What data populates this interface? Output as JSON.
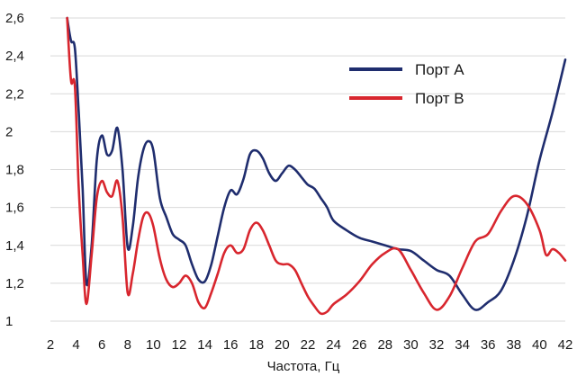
{
  "chart_data": {
    "type": "line",
    "title": "",
    "xlabel": "Частота, Гц",
    "ylabel": "",
    "xlim": [
      2,
      42
    ],
    "ylim": [
      1,
      2.6
    ],
    "xticks": [
      2,
      4,
      6,
      8,
      10,
      12,
      14,
      16,
      18,
      20,
      22,
      24,
      26,
      28,
      30,
      32,
      34,
      36,
      38,
      40,
      42
    ],
    "yticks": [
      1,
      1.2,
      1.4,
      1.6,
      1.8,
      2,
      2.2,
      2.4,
      2.6
    ],
    "ytick_labels": [
      "1",
      "1,2",
      "1,4",
      "1,6",
      "1,8",
      "2",
      "2,2",
      "2,4",
      "2,6"
    ],
    "grid": "horizontal",
    "legend_position": "top-right",
    "series": [
      {
        "name": "Порт А",
        "color": "#1f2d6e",
        "x": [
          3.3,
          3.6,
          3.9,
          4.2,
          4.5,
          4.8,
          5.2,
          5.6,
          6.0,
          6.4,
          6.8,
          7.2,
          7.6,
          8.0,
          8.4,
          8.8,
          9.2,
          9.6,
          10.0,
          10.5,
          11.0,
          11.5,
          12.0,
          12.5,
          13.0,
          13.5,
          14.0,
          14.5,
          15.0,
          15.5,
          16.0,
          16.5,
          17.0,
          17.5,
          18.0,
          18.5,
          19.0,
          19.5,
          20.0,
          20.5,
          21.0,
          21.5,
          22.0,
          22.5,
          23.0,
          23.5,
          24.0,
          25.0,
          26.0,
          27.0,
          28.0,
          29.0,
          30.0,
          31.0,
          32.0,
          33.0,
          34.0,
          35.0,
          36.0,
          37.0,
          38.0,
          39.0,
          40.0,
          41.0,
          42.0
        ],
        "values": [
          2.6,
          2.48,
          2.44,
          2.1,
          1.7,
          1.2,
          1.4,
          1.85,
          1.98,
          1.88,
          1.9,
          2.02,
          1.8,
          1.39,
          1.5,
          1.75,
          1.9,
          1.95,
          1.9,
          1.65,
          1.55,
          1.46,
          1.43,
          1.4,
          1.3,
          1.22,
          1.21,
          1.3,
          1.45,
          1.6,
          1.69,
          1.67,
          1.75,
          1.88,
          1.9,
          1.86,
          1.78,
          1.74,
          1.78,
          1.82,
          1.8,
          1.76,
          1.72,
          1.7,
          1.65,
          1.6,
          1.53,
          1.48,
          1.44,
          1.42,
          1.4,
          1.38,
          1.37,
          1.32,
          1.27,
          1.24,
          1.14,
          1.06,
          1.1,
          1.16,
          1.32,
          1.55,
          1.85,
          2.1,
          2.38
        ]
      },
      {
        "name": "Порт В",
        "color": "#d8262e",
        "x": [
          3.3,
          3.6,
          3.9,
          4.2,
          4.5,
          4.8,
          5.2,
          5.6,
          6.0,
          6.4,
          6.8,
          7.2,
          7.6,
          8.0,
          8.4,
          8.8,
          9.2,
          9.6,
          10.0,
          10.5,
          11.0,
          11.5,
          12.0,
          12.5,
          13.0,
          13.5,
          14.0,
          14.5,
          15.0,
          15.5,
          16.0,
          16.5,
          17.0,
          17.5,
          18.0,
          18.5,
          19.0,
          19.5,
          20.0,
          20.5,
          21.0,
          21.5,
          22.0,
          22.5,
          23.0,
          23.5,
          24.0,
          25.0,
          26.0,
          27.0,
          28.0,
          29.0,
          30.0,
          31.0,
          32.0,
          33.0,
          34.0,
          35.0,
          36.0,
          37.0,
          38.0,
          39.0,
          40.0,
          40.5,
          41.0,
          41.5,
          42.0
        ],
        "values": [
          2.6,
          2.27,
          2.24,
          1.7,
          1.35,
          1.09,
          1.35,
          1.65,
          1.74,
          1.68,
          1.66,
          1.74,
          1.55,
          1.15,
          1.25,
          1.42,
          1.55,
          1.57,
          1.5,
          1.33,
          1.22,
          1.18,
          1.2,
          1.24,
          1.2,
          1.1,
          1.07,
          1.15,
          1.25,
          1.36,
          1.4,
          1.36,
          1.38,
          1.48,
          1.52,
          1.48,
          1.4,
          1.32,
          1.3,
          1.3,
          1.27,
          1.2,
          1.13,
          1.08,
          1.04,
          1.05,
          1.09,
          1.14,
          1.21,
          1.3,
          1.36,
          1.38,
          1.27,
          1.15,
          1.06,
          1.13,
          1.28,
          1.42,
          1.46,
          1.58,
          1.66,
          1.62,
          1.48,
          1.35,
          1.38,
          1.36,
          1.32
        ]
      }
    ]
  }
}
